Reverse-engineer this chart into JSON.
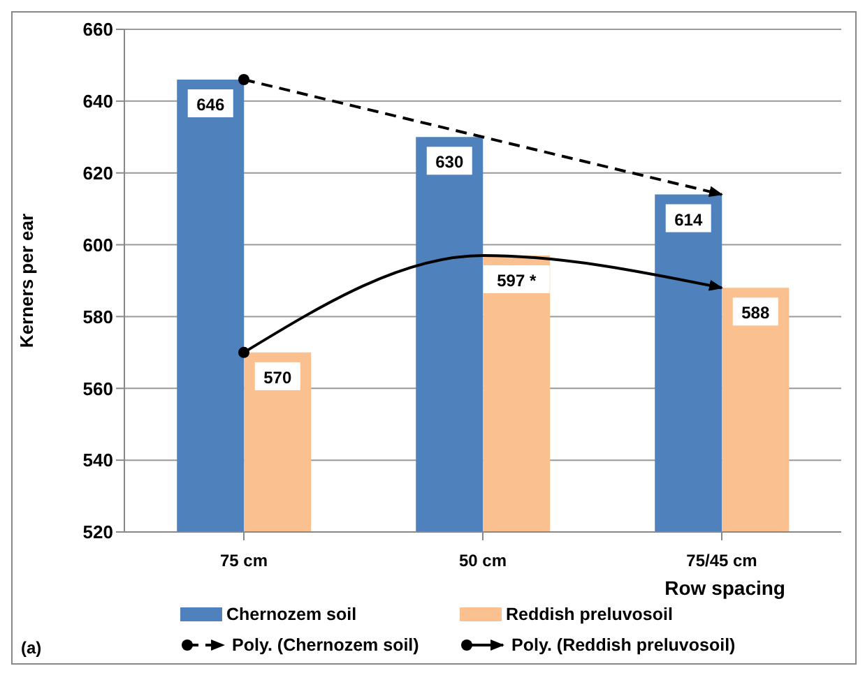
{
  "chart_data": {
    "type": "bar",
    "categories": [
      "75 cm",
      "50 cm",
      "75/45 cm"
    ],
    "xlabel": "Row spacing",
    "ylabel": "Kerners per ear",
    "ylim": [
      520,
      660
    ],
    "yticks": [
      520,
      540,
      560,
      580,
      600,
      620,
      640,
      660
    ],
    "grid": "y",
    "legend": "bottom",
    "annotations": [
      "(a)"
    ],
    "series": [
      {
        "name": "Chernozem soil",
        "color": "#4f81bd",
        "values": [
          646,
          630,
          614
        ],
        "value_labels": [
          "646",
          "630",
          "614"
        ]
      },
      {
        "name": "Reddish preluvosoil",
        "color": "#fac090",
        "values": [
          570,
          597,
          588
        ],
        "value_labels": [
          "570",
          "597 *",
          "588"
        ]
      },
      {
        "name": "Poly. (Chernozem soil)",
        "type": "line",
        "color": "#000000",
        "line_style": "dashed",
        "values": [
          646,
          630,
          614
        ]
      },
      {
        "name": "Poly. (Reddish preluvosoil)",
        "type": "line",
        "color": "#000000",
        "line_style": "solid",
        "values": [
          570,
          597,
          588
        ]
      }
    ]
  }
}
